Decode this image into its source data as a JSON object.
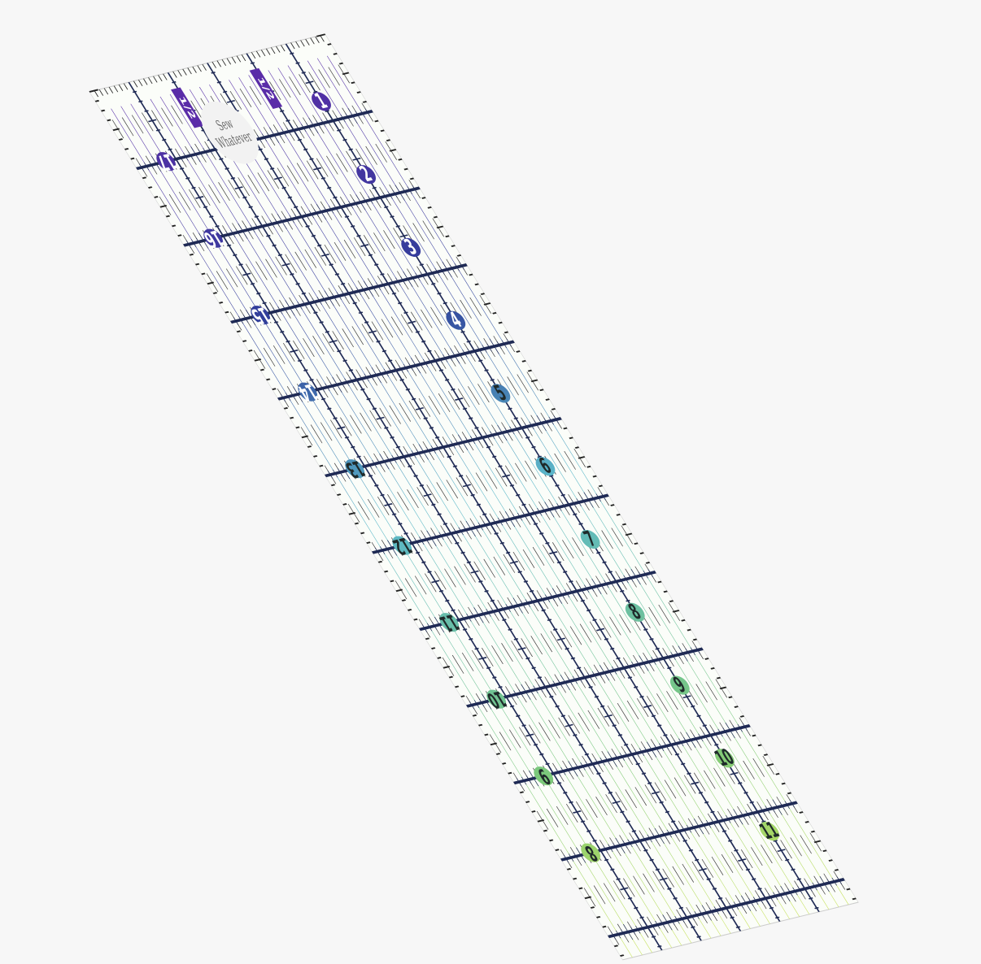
{
  "image": {
    "subject": "quilting-ruler",
    "background_color": "#f7f7f7",
    "logo_text": [
      "Sew",
      "Whatever"
    ],
    "half_inch_labels": [
      "1/2",
      "1/2"
    ],
    "right_column_numbers": [
      "1",
      "2",
      "3",
      "4",
      "5",
      "6",
      "7",
      "8",
      "9",
      "10",
      "11"
    ],
    "left_column_numbers": [
      "17",
      "16",
      "15",
      "14",
      "13",
      "12",
      "11",
      "10",
      "9",
      "8"
    ],
    "color_gradient": [
      "#5a2ca8",
      "#2f3f9a",
      "#5bb7c9",
      "#7cc97a",
      "#c9e35a"
    ]
  }
}
